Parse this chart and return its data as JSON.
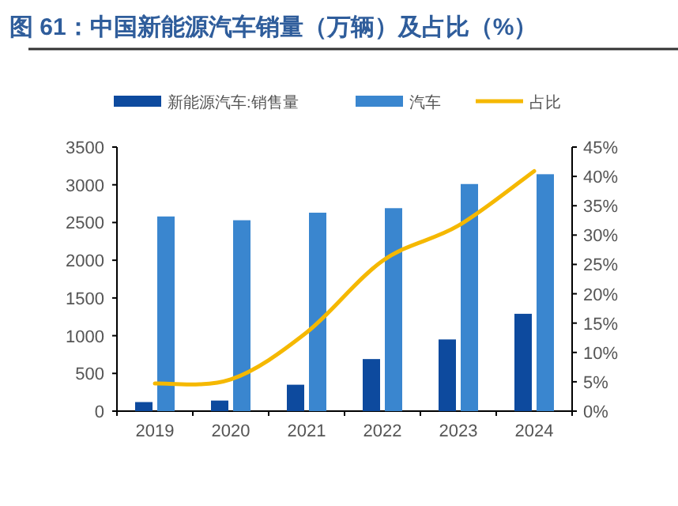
{
  "chart_data": {
    "type": "bar",
    "title": "图 61：中国新能源汽车销量（万辆）及占比（%）",
    "categories": [
      "2019",
      "2020",
      "2021",
      "2022",
      "2023",
      "2024"
    ],
    "series": [
      {
        "name": "新能源汽车:销售量",
        "color": "#0d4a9e",
        "values": [
          120,
          140,
          350,
          690,
          950,
          1290
        ]
      },
      {
        "name": "汽车",
        "color": "#3a86cf",
        "values": [
          2580,
          2530,
          2630,
          2690,
          3010,
          3140
        ]
      },
      {
        "name": "占比",
        "type": "line",
        "axis": "y2",
        "color": "#f5b800",
        "values": [
          4.7,
          5.4,
          13.4,
          25.6,
          31.6,
          40.9
        ]
      }
    ],
    "ylim": [
      0,
      3500
    ],
    "yticks": [
      0,
      500,
      1000,
      1500,
      2000,
      2500,
      3000,
      3500
    ],
    "y2lim": [
      0,
      45
    ],
    "y2ticks": [
      {
        "value": 0,
        "label": "0%"
      },
      {
        "value": 5,
        "label": "5%"
      },
      {
        "value": 10,
        "label": "10%"
      },
      {
        "value": 15,
        "label": "15%"
      },
      {
        "value": 20,
        "label": "20%"
      },
      {
        "value": 25,
        "label": "25%"
      },
      {
        "value": 30,
        "label": "30%"
      },
      {
        "value": 35,
        "label": "35%"
      },
      {
        "value": 40,
        "label": "40%"
      },
      {
        "value": 45,
        "label": "45%"
      }
    ],
    "legend": "top",
    "grid": false
  }
}
